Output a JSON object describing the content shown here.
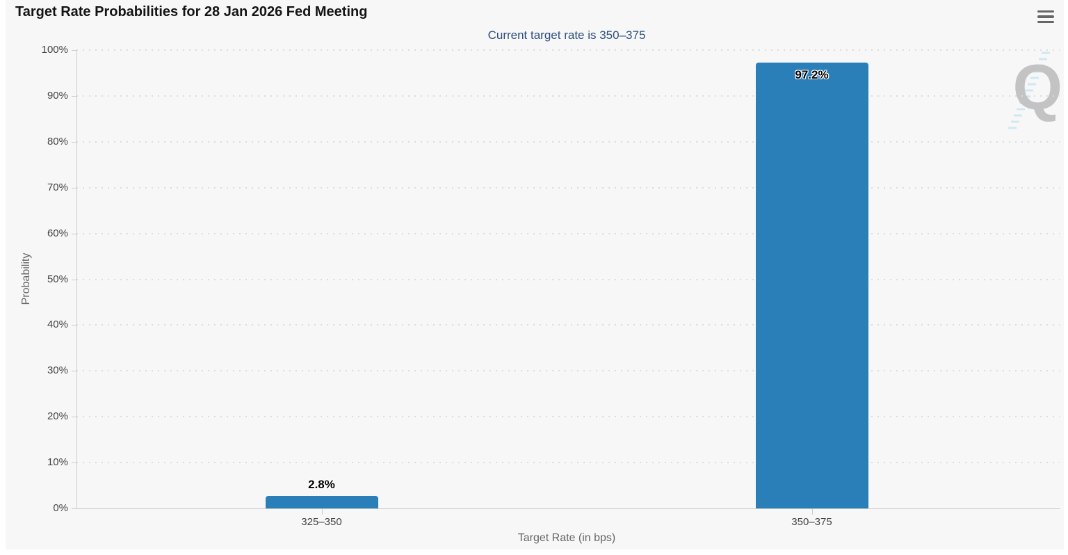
{
  "header": {
    "title": "Target Rate Probabilities for 28 Jan 2026 Fed Meeting",
    "subtitle": "Current target rate is 350–375",
    "menu_icon": "hamburger-menu-icon"
  },
  "axes": {
    "y_title": "Probability",
    "x_title": "Target Rate (in bps)",
    "y_tick_labels": [
      "0%",
      "10%",
      "20%",
      "30%",
      "40%",
      "50%",
      "60%",
      "70%",
      "80%",
      "90%",
      "100%"
    ]
  },
  "watermark": {
    "letter": "Q"
  },
  "colors": {
    "bar": "#2b7fb8",
    "background": "#f7f7f7",
    "subtitle": "#2e4e7c",
    "gridline": "#dcdcdc",
    "axis_line": "#cccccc",
    "watermark_dashes": "#9fd4f0"
  },
  "chart_data": {
    "type": "bar",
    "categories": [
      "325–350",
      "350–375"
    ],
    "values": [
      2.8,
      97.2
    ],
    "value_labels": [
      "2.8%",
      "97.2%"
    ],
    "title": "Target Rate Probabilities for 28 Jan 2026 Fed Meeting",
    "subtitle": "Current target rate is 350–375",
    "xlabel": "Target Rate (in bps)",
    "ylabel": "Probability",
    "ylim": [
      0,
      100
    ],
    "ytick_step": 10,
    "grid": "dotted horizontal gridlines",
    "legend": "none"
  }
}
